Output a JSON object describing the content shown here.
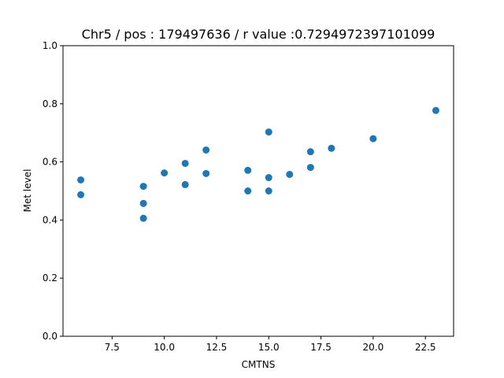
{
  "chart_data": {
    "type": "scatter",
    "title": "Chr5 / pos : 179497636 / r value :0.7294972397101099",
    "xlabel": "CMTNS",
    "ylabel": "Met level",
    "xlim": [
      5.15,
      23.85
    ],
    "ylim": [
      0.0,
      1.0
    ],
    "xticks": [
      7.5,
      10.0,
      12.5,
      15.0,
      17.5,
      20.0,
      22.5
    ],
    "xtick_labels": [
      "7.5",
      "10.0",
      "12.5",
      "15.0",
      "17.5",
      "20.0",
      "22.5"
    ],
    "yticks": [
      0.0,
      0.2,
      0.4,
      0.6,
      0.8,
      1.0
    ],
    "ytick_labels": [
      "0.0",
      "0.2",
      "0.4",
      "0.6",
      "0.8",
      "1.0"
    ],
    "grid": false,
    "legend": false,
    "marker_color": "#1f77b4",
    "series": [
      {
        "x": [
          6,
          6,
          9,
          9,
          9,
          10,
          11,
          11,
          12,
          12,
          14,
          14,
          15,
          15,
          15,
          16,
          17,
          17,
          18,
          20,
          23
        ],
        "y": [
          0.538,
          0.487,
          0.516,
          0.457,
          0.406,
          0.562,
          0.595,
          0.522,
          0.641,
          0.56,
          0.571,
          0.5,
          0.703,
          0.546,
          0.5,
          0.557,
          0.635,
          0.581,
          0.647,
          0.68,
          0.777
        ]
      }
    ]
  }
}
